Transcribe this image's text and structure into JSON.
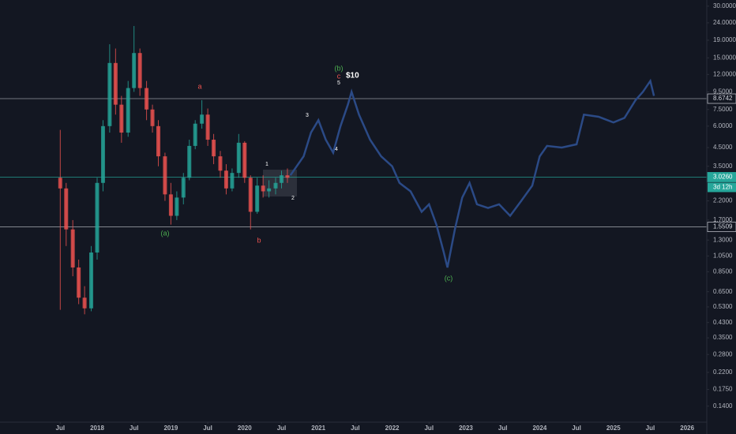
{
  "chart_data": {
    "type": "candlestick",
    "log_scale": true,
    "grid": false,
    "up_color": "#26a69a",
    "down_color": "#ef5350",
    "xlim": [
      2016.683,
      2026.266
    ],
    "xticks": [
      {
        "value": 2017.5,
        "label": "Jul"
      },
      {
        "value": 2018,
        "label": "2018"
      },
      {
        "value": 2018.5,
        "label": "Jul"
      },
      {
        "value": 2019,
        "label": "2019"
      },
      {
        "value": 2019.5,
        "label": "Jul"
      },
      {
        "value": 2020,
        "label": "2020"
      },
      {
        "value": 2020.5,
        "label": "Jul"
      },
      {
        "value": 2021,
        "label": "2021"
      },
      {
        "value": 2021.5,
        "label": "Jul"
      },
      {
        "value": 2022,
        "label": "2022"
      },
      {
        "value": 2022.5,
        "label": "Jul"
      },
      {
        "value": 2023,
        "label": "2023"
      },
      {
        "value": 2023.5,
        "label": "Jul"
      },
      {
        "value": 2024,
        "label": "2024"
      },
      {
        "value": 2024.5,
        "label": "Jul"
      },
      {
        "value": 2025,
        "label": "2025"
      },
      {
        "value": 2025.5,
        "label": "Jul"
      },
      {
        "value": 2026,
        "label": "2026"
      }
    ],
    "ylim": [
      0.119,
      32.6
    ],
    "yticks": [
      {
        "value": 30,
        "label": "30.0000"
      },
      {
        "value": 24,
        "label": "24.0000"
      },
      {
        "value": 19,
        "label": "19.0000"
      },
      {
        "value": 15,
        "label": "15.0000"
      },
      {
        "value": 12,
        "label": "12.0000"
      },
      {
        "value": 9.5,
        "label": "9.5000"
      },
      {
        "value": 7.5,
        "label": "7.5000"
      },
      {
        "value": 6,
        "label": "6.0000"
      },
      {
        "value": 4.5,
        "label": "4.5000"
      },
      {
        "value": 3.5,
        "label": "3.5000"
      },
      {
        "value": 2.2,
        "label": "2.2000"
      },
      {
        "value": 1.7,
        "label": "1.7000"
      },
      {
        "value": 1.3,
        "label": "1.3000"
      },
      {
        "value": 1.05,
        "label": "1.0500"
      },
      {
        "value": 0.85,
        "label": "0.8500"
      },
      {
        "value": 0.65,
        "label": "0.6500"
      },
      {
        "value": 0.53,
        "label": "0.5300"
      },
      {
        "value": 0.43,
        "label": "0.4300"
      },
      {
        "value": 0.35,
        "label": "0.3500"
      },
      {
        "value": 0.28,
        "label": "0.2800"
      },
      {
        "value": 0.22,
        "label": "0.2200"
      },
      {
        "value": 0.175,
        "label": "0.1750"
      },
      {
        "value": 0.14,
        "label": "0.1400"
      }
    ],
    "x": [
      2017.5,
      2017.58,
      2017.67,
      2017.75,
      2017.83,
      2017.92,
      2018.0,
      2018.08,
      2018.17,
      2018.25,
      2018.33,
      2018.42,
      2018.5,
      2018.58,
      2018.67,
      2018.75,
      2018.83,
      2018.92,
      2019.0,
      2019.08,
      2019.17,
      2019.25,
      2019.33,
      2019.42,
      2019.5,
      2019.58,
      2019.67,
      2019.75,
      2019.83,
      2019.92,
      2020.0,
      2020.08,
      2020.17,
      2020.25,
      2020.33,
      2020.42,
      2020.5,
      2020.58
    ],
    "open": [
      3.0,
      2.6,
      1.5,
      0.9,
      0.6,
      0.52,
      1.1,
      2.8,
      6.0,
      14,
      8,
      5.5,
      10,
      16,
      10,
      7.5,
      6,
      4,
      2.4,
      1.8,
      2.3,
      3.0,
      4.6,
      6.2,
      7.0,
      5.0,
      4.0,
      3.3,
      2.6,
      3.2,
      4.8,
      3.0,
      1.9,
      2.7,
      2.5,
      2.6,
      2.8,
      3.1
    ],
    "high": [
      5.7,
      2.8,
      1.7,
      1.0,
      0.7,
      1.2,
      3.0,
      6.5,
      18,
      17,
      9,
      11,
      23,
      17,
      11,
      8,
      6.5,
      4.2,
      2.8,
      2.5,
      3.2,
      5.0,
      6.5,
      8.5,
      7.6,
      5.4,
      4.3,
      3.6,
      3.4,
      5.4,
      4.9,
      3.1,
      3.0,
      3.1,
      2.9,
      3.0,
      3.3,
      3.4
    ],
    "low": [
      0.51,
      1.2,
      0.8,
      0.55,
      0.48,
      0.5,
      1.0,
      2.5,
      5.5,
      7,
      4.8,
      5.2,
      9.5,
      9,
      6.5,
      5.5,
      3.5,
      2.2,
      1.6,
      1.7,
      2.1,
      2.9,
      4.4,
      5.8,
      4.6,
      3.6,
      3.0,
      2.4,
      2.5,
      3.0,
      2.8,
      1.5,
      1.85,
      2.3,
      2.3,
      2.4,
      2.6,
      2.8
    ],
    "close": [
      2.6,
      1.5,
      0.9,
      0.6,
      0.52,
      1.1,
      2.8,
      6.0,
      14,
      8,
      5.5,
      10,
      16,
      10,
      7.5,
      6,
      4,
      2.4,
      1.8,
      2.3,
      3.0,
      4.6,
      6.2,
      7.0,
      5.0,
      4.0,
      3.3,
      2.6,
      3.2,
      4.8,
      3.0,
      1.9,
      2.7,
      2.5,
      2.6,
      2.8,
      3.1,
      3.0
    ],
    "projection": {
      "color": "#2b4a86",
      "x": [
        2020.62,
        2020.8,
        2020.9,
        2021.0,
        2021.1,
        2021.2,
        2021.3,
        2021.4,
        2021.45,
        2021.55,
        2021.7,
        2021.85,
        2022.0,
        2022.1,
        2022.25,
        2022.4,
        2022.5,
        2022.6,
        2022.7,
        2022.75,
        2022.85,
        2022.95,
        2023.05,
        2023.15,
        2023.3,
        2023.45,
        2023.6,
        2023.75,
        2023.9,
        2024.0,
        2024.1,
        2024.3,
        2024.5,
        2024.6,
        2024.8,
        2025.0,
        2025.15,
        2025.3,
        2025.4,
        2025.5,
        2025.55
      ],
      "values": [
        3.1,
        4.0,
        5.5,
        6.5,
        5.0,
        4.2,
        6.0,
        8.0,
        9.5,
        7.0,
        5.0,
        4.0,
        3.5,
        2.8,
        2.5,
        1.9,
        2.1,
        1.6,
        1.1,
        0.9,
        1.5,
        2.3,
        2.8,
        2.1,
        2.0,
        2.1,
        1.8,
        2.2,
        2.7,
        4.0,
        4.6,
        4.5,
        4.7,
        7.0,
        6.8,
        6.3,
        6.7,
        8.5,
        9.5,
        11.0,
        9.0
      ]
    },
    "levels": [
      {
        "value": 8.6742,
        "color": "#b2b5be"
      },
      {
        "value": {
          "value": 3.026,
          "label": "3.0260"
        },
        "color": "#26a69a"
      },
      {
        "value": 1.5509,
        "color": "#b2b5be"
      }
    ],
    "countdown": "3d 12h",
    "annotations": [
      "a",
      "(b)",
      "c",
      "5",
      "$10",
      "3",
      "4",
      "1",
      "2",
      "(a)",
      "b",
      "(c)"
    ]
  }
}
